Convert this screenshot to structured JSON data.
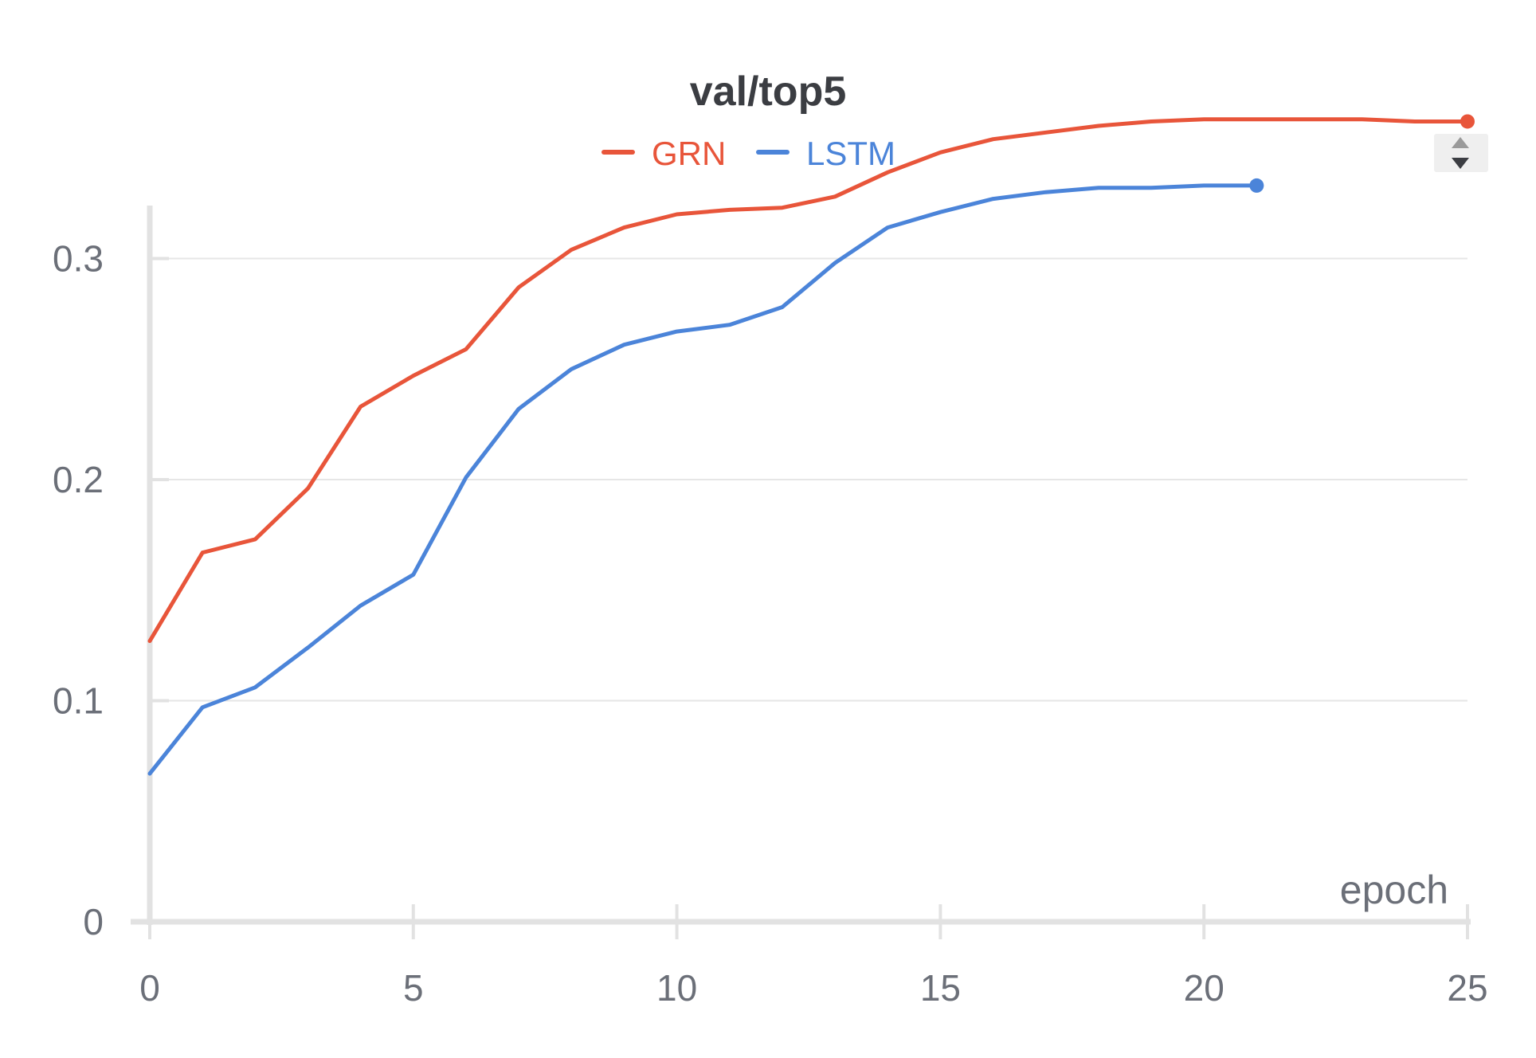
{
  "chart_data": {
    "type": "line",
    "title": "val/top5",
    "xlabel": "epoch",
    "ylabel": "",
    "xlim": [
      0,
      25
    ],
    "ylim": [
      0,
      0.36
    ],
    "x_ticks": [
      "0",
      "5",
      "10",
      "15",
      "20",
      "25"
    ],
    "y_ticks": [
      "0",
      "0.1",
      "0.2",
      "0.3"
    ],
    "grid": true,
    "legend_position": "top-center",
    "series": [
      {
        "name": "GRN",
        "color": "#e8553a",
        "x": [
          0,
          1,
          2,
          3,
          4,
          5,
          6,
          7,
          8,
          9,
          10,
          11,
          12,
          13,
          14,
          15,
          16,
          17,
          18,
          19,
          20,
          21,
          22,
          23,
          24,
          25
        ],
        "values": [
          0.127,
          0.167,
          0.173,
          0.196,
          0.233,
          0.247,
          0.259,
          0.287,
          0.304,
          0.314,
          0.32,
          0.322,
          0.323,
          0.328,
          0.339,
          0.348,
          0.354,
          0.357,
          0.36,
          0.362,
          0.363,
          0.363,
          0.363,
          0.363,
          0.362,
          0.362
        ]
      },
      {
        "name": "LSTM",
        "color": "#4b84d9",
        "x": [
          0,
          1,
          2,
          3,
          4,
          5,
          6,
          7,
          8,
          9,
          10,
          11,
          12,
          13,
          14,
          15,
          16,
          17,
          18,
          19,
          20,
          21
        ],
        "values": [
          0.067,
          0.097,
          0.106,
          0.124,
          0.143,
          0.157,
          0.201,
          0.232,
          0.25,
          0.261,
          0.267,
          0.27,
          0.278,
          0.298,
          0.314,
          0.321,
          0.327,
          0.33,
          0.332,
          0.332,
          0.333,
          0.333
        ]
      }
    ]
  },
  "controls": {
    "sort_icon": "sort-up-down-icon"
  }
}
